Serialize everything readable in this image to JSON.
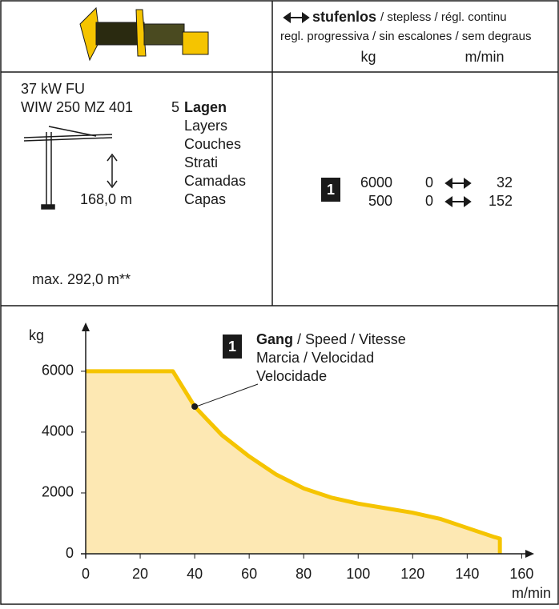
{
  "header": {
    "speed_bold": "stufenlos",
    "speed_rest": "/ stepless / régl. continu",
    "speed_subtitle": "regl. progressiva / sin escalones / sem degraus",
    "unit_load": "kg",
    "unit_speed": "m/min"
  },
  "motor": {
    "power": "37 kW FU",
    "winch": "WIW 250 MZ 401",
    "layers_count": "5",
    "layers": [
      "Lagen",
      "Layers",
      "Couches",
      "Strati",
      "Camadas",
      "Capas"
    ],
    "height": "168,0 m",
    "max_height": "max. 292,0 m**"
  },
  "gears": {
    "gear": "1",
    "rows": [
      {
        "load": 6000,
        "speed_from": 0,
        "speed_to": 32
      },
      {
        "load": 500,
        "speed_from": 0,
        "speed_to": 152
      }
    ]
  },
  "chart_data": {
    "type": "area",
    "y_label": "kg",
    "x_label": "m/min",
    "color": "#f5c400",
    "fill": "#fde8b3",
    "x": [
      0,
      32,
      40,
      50,
      60,
      70,
      80,
      90,
      100,
      110,
      120,
      130,
      140,
      150,
      152,
      152
    ],
    "values": [
      6000,
      6000,
      4840,
      3900,
      3200,
      2600,
      2150,
      1850,
      1650,
      1500,
      1350,
      1150,
      850,
      550,
      500,
      0
    ],
    "xlim": [
      0,
      164
    ],
    "ylim": [
      0,
      7550
    ],
    "xticks": [
      0,
      20,
      40,
      60,
      80,
      100,
      120,
      140,
      160
    ],
    "yticks": [
      0,
      2000,
      4000,
      6000
    ],
    "annotation": {
      "marker": "1",
      "label_bold": "Gang",
      "label_rest": "/ Speed / Vitesse",
      "line2": "Marcia / Velocidad",
      "line3": "Velocidade"
    }
  }
}
